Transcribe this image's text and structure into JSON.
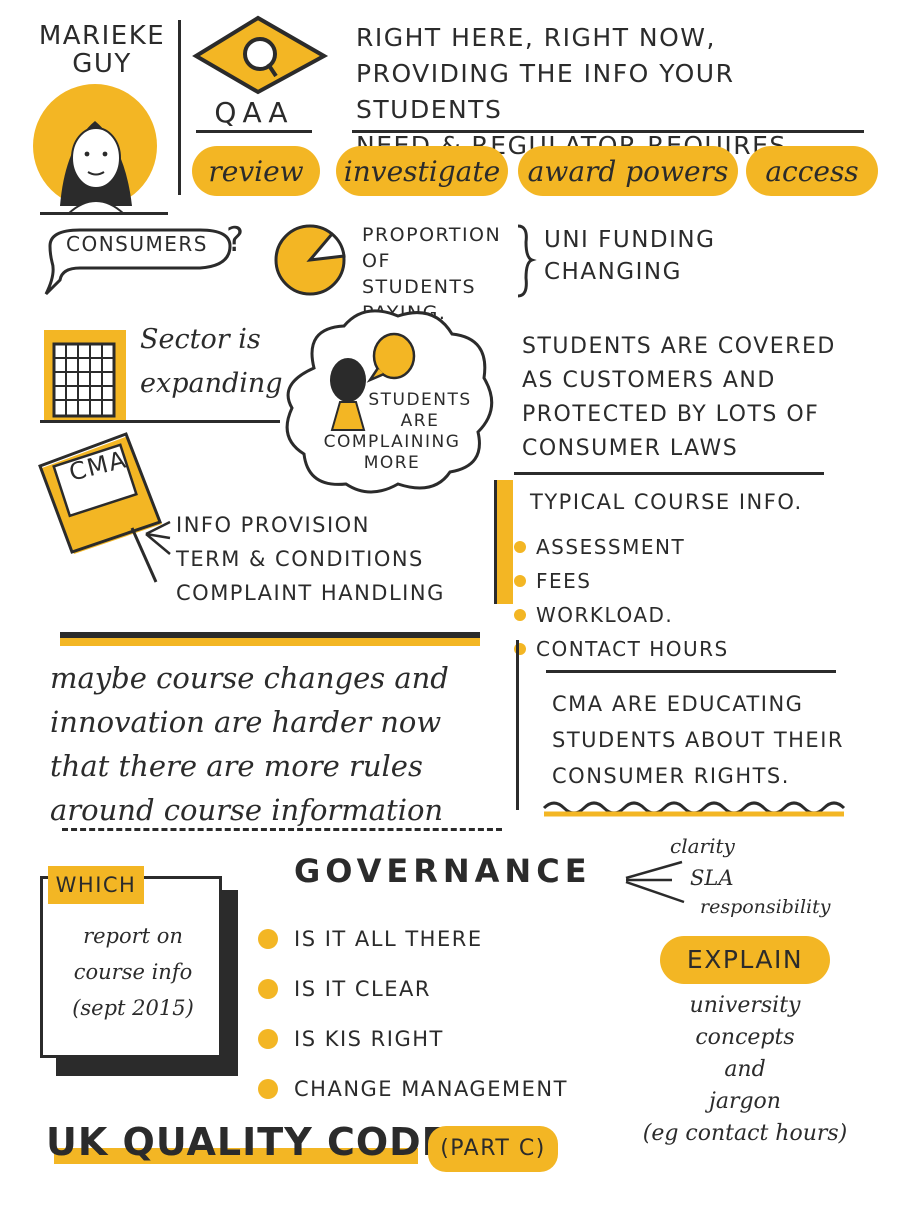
{
  "speaker": {
    "name_line1": "MARIEKE",
    "name_line2": "GUY"
  },
  "qaa": {
    "label": "QAA",
    "tagline": [
      "RIGHT HERE, RIGHT NOW,",
      "PROVIDING THE INFO YOUR STUDENTS",
      "NEED & REGULATOR REQUIRES"
    ],
    "roles": [
      "review",
      "investigate",
      "award powers",
      "access"
    ]
  },
  "consumers": {
    "label": "CONSUMERS",
    "question": "?",
    "proportion": [
      "PROPORTION",
      "OF STUDENTS",
      "PAYING."
    ],
    "funding": [
      "UNI FUNDING",
      "CHANGING"
    ]
  },
  "sector": {
    "text": [
      "Sector is",
      "expanding"
    ]
  },
  "complaints": {
    "text": [
      "STUDENTS",
      "ARE",
      "COMPLAINING",
      "MORE"
    ]
  },
  "students_covered": [
    "STUDENTS ARE COVERED",
    "AS CUSTOMERS AND",
    "PROTECTED BY LOTS OF",
    "CONSUMER LAWS"
  ],
  "cma": {
    "label": "CMA",
    "items": [
      "INFO PROVISION",
      "TERM & CONDITIONS",
      "COMPLAINT HANDLING"
    ]
  },
  "typical": {
    "title": "TYPICAL COURSE INFO.",
    "items": [
      "ASSESSMENT",
      "FEES",
      "WORKLOAD.",
      "CONTACT HOURS"
    ]
  },
  "maybe": [
    "maybe course changes and",
    "innovation are harder now",
    "that there are more rules",
    "around course information"
  ],
  "cma_educating": [
    "CMA ARE EDUCATING",
    "STUDENTS ABOUT THEIR",
    "CONSUMER RIGHTS."
  ],
  "which": {
    "label": "WHICH",
    "text": [
      "report on",
      "course info",
      "(sept 2015)"
    ]
  },
  "governance": {
    "title": "GOVERNANCE",
    "branches": [
      "clarity",
      "SLA",
      "responsibility"
    ],
    "items": [
      "IS IT ALL THERE",
      "IS IT CLEAR",
      "IS KIS RIGHT",
      "CHANGE MANAGEMENT"
    ]
  },
  "explain": {
    "label": "EXPLAIN",
    "text": [
      "university",
      "concepts",
      "and",
      "jargon",
      "(eg contact hours)"
    ]
  },
  "footer": {
    "title": "UK QUALITY CODE",
    "part": "(PART C)"
  },
  "colors": {
    "accent": "#f3b624",
    "ink": "#2b2b2b",
    "paper": "#ffffff"
  }
}
